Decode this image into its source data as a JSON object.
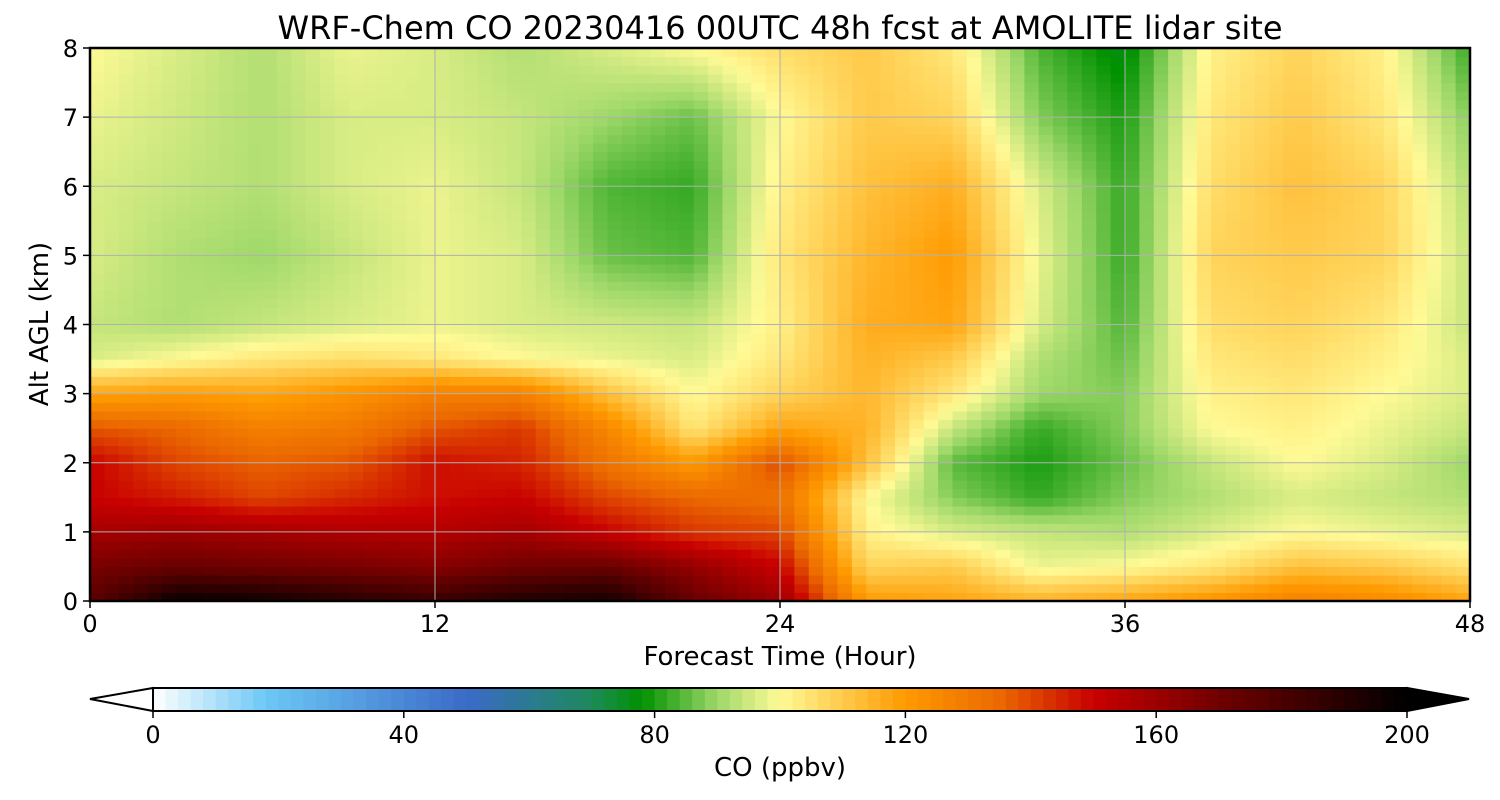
{
  "chart_data": {
    "type": "heatmap",
    "title": "WRF-Chem CO  20230416 00UTC 48h fcst at AMOLITE lidar site",
    "xlabel": "Forecast Time (Hour)",
    "ylabel": "Alt AGL (km)",
    "xlim": [
      0,
      48
    ],
    "ylim": [
      0,
      8
    ],
    "x_ticks": [
      "0",
      "12",
      "24",
      "36",
      "48"
    ],
    "y_ticks": [
      "0",
      "1",
      "2",
      "3",
      "4",
      "5",
      "6",
      "7",
      "8"
    ],
    "grid": true,
    "x_hours": [
      0,
      3,
      6,
      9,
      12,
      15,
      18,
      21,
      24,
      27,
      30,
      33,
      36,
      39,
      42,
      45,
      48
    ],
    "y_km": [
      0,
      0.5,
      1,
      1.5,
      2,
      2.5,
      3,
      3.5,
      4,
      5,
      6,
      7,
      8
    ],
    "values": [
      [
        175,
        198,
        196,
        190,
        185,
        192,
        195,
        172,
        160,
        120,
        118,
        115,
        118,
        122,
        128,
        125,
        118
      ],
      [
        168,
        172,
        170,
        168,
        165,
        170,
        172,
        162,
        150,
        108,
        110,
        98,
        100,
        104,
        112,
        110,
        105
      ],
      [
        158,
        160,
        158,
        156,
        155,
        158,
        150,
        142,
        140,
        102,
        96,
        94,
        92,
        96,
        100,
        98,
        96
      ],
      [
        150,
        146,
        140,
        144,
        148,
        150,
        140,
        135,
        132,
        100,
        88,
        82,
        88,
        92,
        96,
        94,
        92
      ],
      [
        150,
        140,
        136,
        138,
        148,
        145,
        132,
        120,
        140,
        112,
        85,
        80,
        86,
        94,
        100,
        96,
        90
      ],
      [
        138,
        135,
        128,
        130,
        138,
        142,
        126,
        104,
        118,
        115,
        94,
        82,
        88,
        100,
        102,
        98,
        94
      ],
      [
        118,
        120,
        118,
        122,
        128,
        128,
        112,
        100,
        108,
        114,
        104,
        90,
        88,
        102,
        104,
        100,
        96
      ],
      [
        96,
        100,
        104,
        106,
        104,
        100,
        98,
        96,
        104,
        115,
        110,
        92,
        86,
        104,
        106,
        102,
        96
      ],
      [
        94,
        92,
        94,
        96,
        98,
        96,
        95,
        94,
        102,
        116,
        118,
        96,
        84,
        106,
        108,
        104,
        94
      ],
      [
        96,
        92,
        90,
        94,
        98,
        96,
        86,
        84,
        104,
        114,
        120,
        98,
        82,
        108,
        110,
        108,
        94
      ],
      [
        96,
        94,
        92,
        96,
        98,
        94,
        84,
        82,
        102,
        112,
        116,
        96,
        82,
        106,
        112,
        108,
        92
      ],
      [
        98,
        95,
        92,
        96,
        96,
        94,
        90,
        86,
        100,
        110,
        108,
        88,
        80,
        104,
        110,
        104,
        88
      ],
      [
        100,
        96,
        92,
        98,
        96,
        92,
        96,
        100,
        106,
        110,
        104,
        84,
        76,
        102,
        108,
        102,
        82
      ]
    ],
    "colorbar": {
      "label": "CO  (ppbv)",
      "range": [
        0,
        200
      ],
      "ticks": [
        "0",
        "40",
        "80",
        "120",
        "160",
        "200"
      ],
      "extend": "both",
      "stops": [
        {
          "v": 0,
          "c": "#ffffff"
        },
        {
          "v": 18,
          "c": "#6cc8f5"
        },
        {
          "v": 50,
          "c": "#3a6ac8"
        },
        {
          "v": 70,
          "c": "#1e8a5a"
        },
        {
          "v": 78,
          "c": "#009100"
        },
        {
          "v": 90,
          "c": "#9ed86a"
        },
        {
          "v": 100,
          "c": "#fffa96"
        },
        {
          "v": 120,
          "c": "#ff9a00"
        },
        {
          "v": 135,
          "c": "#eb6900"
        },
        {
          "v": 150,
          "c": "#c80000"
        },
        {
          "v": 170,
          "c": "#700000"
        },
        {
          "v": 200,
          "c": "#000000"
        }
      ]
    }
  }
}
